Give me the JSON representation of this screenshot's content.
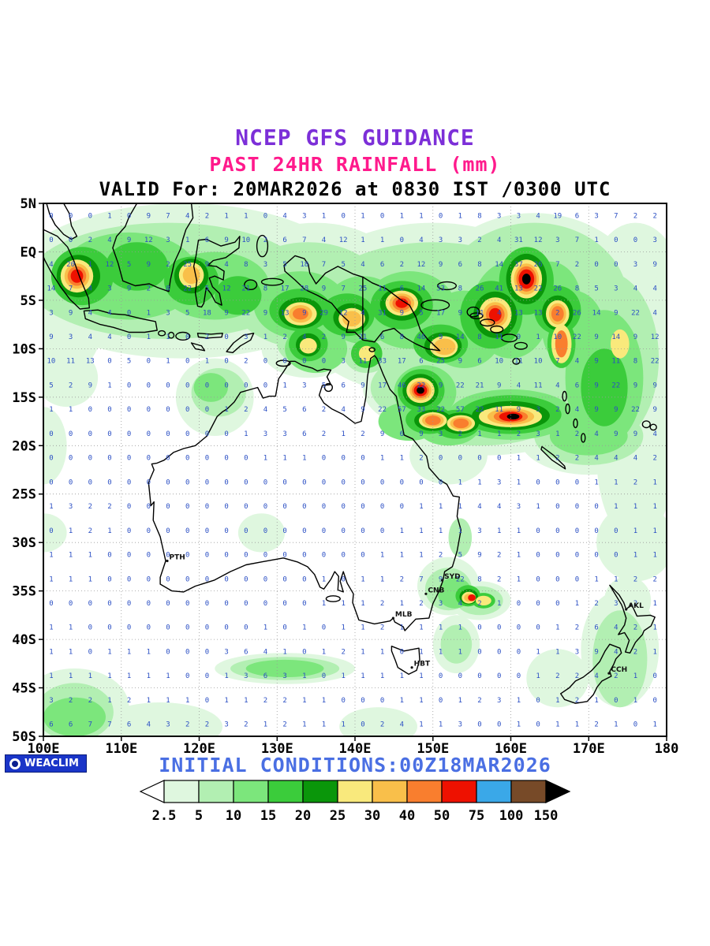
{
  "header": {
    "title1": "NCEP GFS GUIDANCE",
    "title2": "PAST 24HR RAINFALL (mm)",
    "title3": "VALID For: 20MAR2026 at 0830 IST /0300 UTC"
  },
  "footer": {
    "initial_conditions": "INITIAL CONDITIONS:00Z18MAR2026",
    "logo_text": "WEACLIM"
  },
  "colors": {
    "title1": "#7c2fd8",
    "title2": "#ff1a8c",
    "title3": "#000000",
    "initial_conditions": "#4a6fe3",
    "grid_numbers": "#2b4fc4",
    "coastline": "#000000",
    "logo_bg": "#1a35c8"
  },
  "map_bounds": {
    "lon_min": 100,
    "lon_max": 180,
    "lat_min": -50,
    "lat_max": 5
  },
  "axes": {
    "lat_ticks": [
      {
        "label": "5N",
        "lat": 5
      },
      {
        "label": "EQ",
        "lat": 0
      },
      {
        "label": "5S",
        "lat": -5
      },
      {
        "label": "10S",
        "lat": -10
      },
      {
        "label": "15S",
        "lat": -15
      },
      {
        "label": "20S",
        "lat": -20
      },
      {
        "label": "25S",
        "lat": -25
      },
      {
        "label": "30S",
        "lat": -30
      },
      {
        "label": "35S",
        "lat": -35
      },
      {
        "label": "40S",
        "lat": -40
      },
      {
        "label": "45S",
        "lat": -45
      },
      {
        "label": "50S",
        "lat": -50
      }
    ],
    "lon_ticks": [
      {
        "label": "100E",
        "lon": 100
      },
      {
        "label": "110E",
        "lon": 110
      },
      {
        "label": "120E",
        "lon": 120
      },
      {
        "label": "130E",
        "lon": 130
      },
      {
        "label": "140E",
        "lon": 140
      },
      {
        "label": "150E",
        "lon": 150
      },
      {
        "label": "160E",
        "lon": 160
      },
      {
        "label": "170E",
        "lon": 170
      },
      {
        "label": "180",
        "lon": 180
      }
    ]
  },
  "legend": {
    "labels": [
      "2.5",
      "5",
      "10",
      "15",
      "20",
      "25",
      "30",
      "40",
      "50",
      "75",
      "100",
      "150"
    ],
    "colors": [
      "#ffffff",
      "#dff7df",
      "#b2efb2",
      "#7ce67c",
      "#3bcc3b",
      "#0a960a",
      "#f9e97c",
      "#f9bf4a",
      "#f97e2e",
      "#ee1100",
      "#3aa8e8",
      "#774a28",
      "#000000"
    ]
  },
  "cities": [
    {
      "label": "PTH",
      "lon": 115.9,
      "lat": -31.9
    },
    {
      "label": "SYD",
      "lon": 151.2,
      "lat": -33.9
    },
    {
      "label": "CNB",
      "lon": 149.1,
      "lat": -35.3
    },
    {
      "label": "MLB",
      "lon": 144.9,
      "lat": -37.8
    },
    {
      "label": "HBT",
      "lon": 147.3,
      "lat": -42.9
    },
    {
      "label": "AKL",
      "lon": 174.8,
      "lat": -36.9
    },
    {
      "label": "CCH",
      "lon": 172.6,
      "lat": -43.5
    }
  ],
  "values_grid": {
    "lon_start": 101,
    "lon_step": 2.5,
    "lat_start": 3.75,
    "lat_step": -2.5,
    "rows": [
      "0 0 0 1 0 9 7 4 2 1 1 0 4 3 1 0 1 0 1 1 0 1 8 3 3 4 19 6 3 7 2 2",
      "0 0 2 4 9 12 3 1 6 9 10 2 6 7 4 12 1 1 0 4 3 3 2 4 31 12 3 7 1 0 0 3",
      "4 20 1 12 5 9 2 25 9 4 8 3 5 18 7 5 4 6 2 12 9 6 8 14 37 26 7 2 0 0 3 9",
      "14 7 4 3 9 2 8 22 5 12 21 8 17 28 9 7 25 11 6 14 33 8 26 41 13 22 26 8 5 3 4 4",
      "3 9 4 4 0 1 3 5 18 9 22 9 13 9 29 12 4 31 9 5 17 9 11 4 13 13 2 26 14 9 22 4",
      "9 3 4 4 0 1 1 0 2 0 3 1 2 4 2 9 21 6 8 46 9 14 8 11 9 1 10 22 9 14 9 12",
      "10 11 13 0 5 0 1 0 1 0 2 0 0 0 0 3 11 33 17 6 25 9 6 10 11 10 7 4 9 11 8 22",
      "5 2 9 1 0 0 0 0 0 0 0 0 1 3 5 6 9 17 46 22 9 22 21 9 4 11 4 6 9 22 9 9",
      "1 1 0 0 0 0 0 0 0 1 2 4 5 6 2 4 9 22 57 33 22 57 22 11 9 3 2 4 9 9 22 9",
      "0 0 0 0 0 0 0 0 0 0 1 3 3 6 2 1 2 9 6 9 3 2 1 1 2 3 1 2 4 9 9 4",
      "0 0 0 0 0 0 0 0 0 0 0 1 1 1 0 0 0 1 1 2 0 0 0 0 1 1 2 2 4 4 4 2",
      "0 0 0 0 0 0 0 0 0 0 0 0 0 0 0 0 0 0 0 0 0 1 1 3 1 0 0 0 1 1 2 1",
      "1 3 2 2 0 0 0 0 0 0 0 0 0 0 0 0 0 0 0 1 1 1 4 4 3 1 0 0 0 1 1 1",
      "0 1 2 1 0 0 0 0 0 0 0 0 0 0 0 0 0 0 1 1 1 1 3 1 1 0 0 0 0 0 1 1",
      "1 1 1 0 0 0 0 0 0 0 0 0 0 0 0 0 0 1 1 1 2 5 9 2 1 0 0 0 0 0 1 1",
      "1 1 1 0 0 0 0 0 0 0 0 0 0 0 1 0 1 1 2 7 9 22 8 2 1 0 0 0 1 1 2 2",
      "0 0 0 0 0 0 0 0 0 0 0 0 0 0 1 1 1 2 1 2 3 4 2 1 0 0 0 1 2 3 2 1",
      "1 1 0 0 0 0 0 0 0 0 0 1 0 1 0 1 1 2 1 1 1 1 0 0 0 0 1 2 6 4 2 1",
      "1 1 0 1 1 1 0 0 0 3 6 4 1 0 1 2 1 1 0 1 1 1 0 0 0 1 1 3 9 4 2 1",
      "1 1 1 1 1 1 1 0 0 1 3 6 3 1 0 1 1 1 1 1 0 0 0 0 0 1 2 2 4 2 1 0",
      "3 2 2 1 2 1 1 1 0 1 1 2 2 1 1 0 0 0 1 1 0 1 2 3 1 0 1 2 1 0 1 0",
      "6 6 7 7 6 4 3 2 2 3 2 1 2 1 1 1 0 2 4 1 1 3 0 0 1 0 1 1 2 1 0 1"
    ]
  },
  "rain_cells": [
    [
      118,
      -3,
      22,
      8,
      1
    ],
    [
      100,
      -6,
      8,
      8,
      1
    ],
    [
      135,
      -4,
      12,
      7,
      1
    ],
    [
      150,
      -6,
      18,
      9,
      1
    ],
    [
      163,
      -5,
      14,
      9,
      1
    ],
    [
      176,
      -4,
      6,
      7,
      1
    ],
    [
      172,
      -10,
      9,
      11,
      1
    ],
    [
      160,
      -13,
      12,
      5,
      1
    ],
    [
      157,
      -17,
      12,
      4,
      1
    ],
    [
      148,
      -14,
      7,
      4,
      1
    ],
    [
      170,
      -19,
      9,
      4,
      1
    ],
    [
      176,
      -21,
      5,
      9,
      1
    ],
    [
      176,
      -30,
      5,
      4,
      1
    ],
    [
      152,
      -21,
      5,
      3,
      1
    ],
    [
      122,
      -15,
      5,
      4,
      1
    ],
    [
      134,
      -10,
      6,
      3,
      1
    ],
    [
      103,
      -13,
      4,
      3,
      1
    ],
    [
      100,
      -20,
      3,
      4,
      1
    ],
    [
      128,
      -29,
      3,
      2,
      1
    ],
    [
      100,
      -29,
      3,
      2,
      1
    ],
    [
      152,
      -34.5,
      4,
      3,
      1
    ],
    [
      156,
      -36,
      4,
      2,
      1
    ],
    [
      153,
      -40.5,
      3,
      3,
      1
    ],
    [
      131,
      -43,
      9,
      1.6,
      1
    ],
    [
      104,
      -47,
      7,
      4,
      1
    ],
    [
      115,
      -49,
      8,
      2.5,
      1
    ],
    [
      143,
      -49,
      5,
      2,
      1
    ],
    [
      174,
      -41,
      5,
      6,
      1
    ],
    [
      175,
      -36,
      3,
      2.5,
      1
    ],
    [
      166,
      -44,
      4,
      3,
      1
    ],
    [
      116,
      -3,
      18,
      6,
      2
    ],
    [
      134,
      -4.5,
      10,
      5.5,
      2
    ],
    [
      150,
      -6,
      16,
      7,
      2
    ],
    [
      163,
      -5,
      12,
      8,
      2
    ],
    [
      172,
      -11,
      7,
      9,
      2
    ],
    [
      160,
      -13,
      10,
      4,
      2
    ],
    [
      156,
      -17,
      10,
      3,
      2
    ],
    [
      148,
      -14,
      6,
      3.2,
      2
    ],
    [
      170,
      -19,
      7,
      3,
      2
    ],
    [
      122.5,
      -14.5,
      3.5,
      2.5,
      2
    ],
    [
      134,
      -9.5,
      4,
      2.2,
      2
    ],
    [
      141.5,
      -10.5,
      3,
      2,
      2
    ],
    [
      153.5,
      -29.5,
      1.5,
      2,
      2
    ],
    [
      152,
      -34.8,
      3,
      2.2,
      2
    ],
    [
      156,
      -36,
      3,
      1.5,
      2
    ],
    [
      153,
      -40.5,
      2,
      2,
      2
    ],
    [
      131,
      -43,
      7,
      1.2,
      2
    ],
    [
      104,
      -47.5,
      5,
      3,
      2
    ],
    [
      174,
      -42,
      3.5,
      5,
      2
    ],
    [
      111,
      -2.5,
      9,
      4.5,
      3
    ],
    [
      122,
      -3.5,
      7,
      3.5,
      3
    ],
    [
      133,
      -5.5,
      6,
      3.5,
      3
    ],
    [
      141,
      -6,
      5,
      3.5,
      3
    ],
    [
      147,
      -6,
      6,
      4,
      3
    ],
    [
      154,
      -8,
      5,
      4,
      3
    ],
    [
      160,
      -6,
      5,
      5,
      3
    ],
    [
      165,
      -5,
      4,
      4,
      3
    ],
    [
      168,
      -8,
      4,
      4,
      3
    ],
    [
      172,
      -13,
      5,
      7,
      3
    ],
    [
      160,
      -16.8,
      8,
      2.6,
      3
    ],
    [
      149,
      -14.5,
      4,
      2.8,
      3
    ],
    [
      147,
      -17.5,
      4,
      2,
      3
    ],
    [
      152,
      -18,
      4,
      2,
      3
    ],
    [
      170,
      -19,
      5,
      2,
      3
    ],
    [
      121.5,
      -14,
      2.2,
      1.5,
      3
    ],
    [
      135,
      -10,
      4,
      2.5,
      3
    ],
    [
      152.8,
      -35.2,
      2.2,
      1.6,
      3
    ],
    [
      104,
      -48,
      4,
      2,
      3
    ],
    [
      131,
      -43,
      5,
      0.9,
      3
    ],
    [
      105,
      -2.5,
      4,
      3,
      4
    ],
    [
      112,
      -1.5,
      4,
      2.5,
      4
    ],
    [
      119,
      -3,
      3.5,
      2.5,
      4
    ],
    [
      125,
      -4.5,
      3,
      2,
      4
    ],
    [
      133,
      -6,
      4,
      2.2,
      4
    ],
    [
      139,
      -6.5,
      3.5,
      2.2,
      4
    ],
    [
      146,
      -5.5,
      4,
      2.5,
      4
    ],
    [
      151,
      -9.5,
      3.5,
      2,
      4
    ],
    [
      157.5,
      -6.5,
      4,
      3.5,
      4
    ],
    [
      162,
      -3,
      3.5,
      3.5,
      4
    ],
    [
      166,
      -6,
      3,
      2.5,
      4
    ],
    [
      166.5,
      -9.5,
      1.8,
      2.5,
      4
    ],
    [
      160,
      -16.8,
      6.5,
      2,
      4
    ],
    [
      148.5,
      -14.3,
      3,
      2.2,
      4
    ],
    [
      149.5,
      -17.3,
      3,
      1.5,
      4
    ],
    [
      153,
      -17.8,
      3,
      1.5,
      4
    ],
    [
      172,
      -14,
      3,
      4,
      4
    ],
    [
      134,
      -9.5,
      2.5,
      1.8,
      4
    ],
    [
      141.5,
      -10.5,
      2,
      1.5,
      4
    ],
    [
      154.5,
      -35.5,
      1.6,
      1.1,
      4
    ],
    [
      156.5,
      -36,
      1.5,
      0.8,
      4
    ],
    [
      104.5,
      -2.5,
      2.8,
      2.2,
      5
    ],
    [
      119,
      -2.5,
      2.2,
      1.8,
      5
    ],
    [
      133,
      -6.3,
      2.8,
      1.6,
      5
    ],
    [
      139.5,
      -6.8,
      2.3,
      1.5,
      5
    ],
    [
      146,
      -5.4,
      2.8,
      1.7,
      5
    ],
    [
      151.3,
      -9.7,
      2.4,
      1.4,
      5
    ],
    [
      158,
      -6.5,
      2.8,
      2.4,
      5
    ],
    [
      162,
      -2.8,
      2.6,
      2.6,
      5
    ],
    [
      166,
      -6.3,
      2,
      1.8,
      5
    ],
    [
      160,
      -16.9,
      5,
      1.5,
      5
    ],
    [
      148.4,
      -14.3,
      2.3,
      1.7,
      5
    ],
    [
      150,
      -17.4,
      2.4,
      1.1,
      5
    ],
    [
      153.5,
      -17.7,
      2.4,
      1.1,
      5
    ],
    [
      157.5,
      -17,
      2.2,
      1,
      5
    ],
    [
      134,
      -9.6,
      1.6,
      1.2,
      5
    ],
    [
      154.6,
      -35.6,
      1.2,
      0.8,
      5
    ],
    [
      104.3,
      -2.5,
      2.1,
      1.7,
      6
    ],
    [
      119,
      -2.4,
      1.6,
      1.3,
      6
    ],
    [
      133,
      -6.4,
      2.1,
      1.2,
      6
    ],
    [
      139.6,
      -6.9,
      1.7,
      1.1,
      6
    ],
    [
      146,
      -5.3,
      2.1,
      1.3,
      6
    ],
    [
      151.4,
      -9.8,
      1.8,
      1.1,
      6
    ],
    [
      158,
      -6.5,
      2.1,
      1.8,
      6
    ],
    [
      162,
      -2.8,
      2,
      2,
      6
    ],
    [
      166,
      -6.4,
      1.5,
      1.4,
      6
    ],
    [
      166.5,
      -9.5,
      1.3,
      2,
      6
    ],
    [
      174,
      -9.5,
      1.2,
      1.5,
      6
    ],
    [
      160,
      -17,
      4,
      1.1,
      6
    ],
    [
      148.4,
      -14.3,
      1.8,
      1.3,
      6
    ],
    [
      150,
      -17.4,
      1.8,
      0.85,
      6
    ],
    [
      153.6,
      -17.7,
      1.8,
      0.85,
      6
    ],
    [
      157.6,
      -17,
      1.7,
      0.8,
      6
    ],
    [
      134,
      -9.7,
      1.1,
      0.8,
      6
    ],
    [
      141.5,
      -10.5,
      1,
      0.8,
      6
    ],
    [
      154.6,
      -35.7,
      0.9,
      0.6,
      6
    ],
    [
      156.5,
      -36,
      1,
      0.5,
      6
    ],
    [
      104.3,
      -2.5,
      1.6,
      1.3,
      7
    ],
    [
      133,
      -6.4,
      1.5,
      0.9,
      7
    ],
    [
      146,
      -5.3,
      1.6,
      1,
      7
    ],
    [
      151.5,
      -9.8,
      1.4,
      0.85,
      7
    ],
    [
      158,
      -6.5,
      1.6,
      1.3,
      7
    ],
    [
      162,
      -2.8,
      1.6,
      1.6,
      7
    ],
    [
      166,
      -6.4,
      1.1,
      1.1,
      7
    ],
    [
      160,
      -17,
      3,
      0.85,
      7
    ],
    [
      148.4,
      -14.3,
      1.4,
      1,
      7
    ],
    [
      150,
      -17.4,
      1.4,
      0.65,
      7
    ],
    [
      153.6,
      -17.7,
      1.4,
      0.65,
      7
    ],
    [
      119,
      -2.4,
      1.1,
      0.9,
      7
    ],
    [
      139.6,
      -6.9,
      1.2,
      0.8,
      7
    ],
    [
      154.6,
      -35.7,
      0.6,
      0.4,
      7
    ],
    [
      104.3,
      -2.5,
      1.2,
      1,
      8
    ],
    [
      146,
      -5.3,
      1.2,
      0.75,
      8
    ],
    [
      158,
      -6.5,
      1.2,
      1,
      8
    ],
    [
      162,
      -2.8,
      1.3,
      1.3,
      8
    ],
    [
      160,
      -17,
      2.2,
      0.65,
      8
    ],
    [
      148.4,
      -14.3,
      1.1,
      0.8,
      8
    ],
    [
      150,
      -17.4,
      1,
      0.5,
      8
    ],
    [
      153.6,
      -17.7,
      1,
      0.5,
      8
    ],
    [
      133,
      -6.4,
      1,
      0.6,
      8
    ],
    [
      166,
      -6.4,
      0.8,
      0.8,
      8
    ],
    [
      166.5,
      -9.5,
      0.8,
      1.4,
      8
    ],
    [
      104.3,
      -2.5,
      0.8,
      0.7,
      9
    ],
    [
      162,
      -2.8,
      1,
      1,
      9
    ],
    [
      148.4,
      -14.3,
      0.85,
      0.6,
      9
    ],
    [
      160,
      -17,
      1.5,
      0.5,
      9
    ],
    [
      158,
      -6.5,
      0.8,
      0.7,
      9
    ],
    [
      146,
      -5.3,
      0.8,
      0.5,
      9
    ],
    [
      155,
      -35.7,
      0.5,
      0.35,
      9
    ],
    [
      162,
      -2.8,
      0.55,
      0.55,
      12
    ],
    [
      148.4,
      -14.3,
      0.5,
      0.35,
      12
    ],
    [
      160.3,
      -17,
      0.8,
      0.3,
      12
    ]
  ]
}
